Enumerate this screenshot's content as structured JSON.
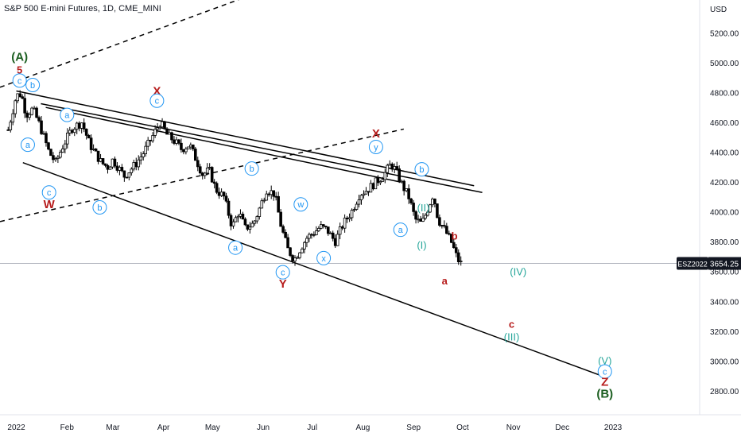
{
  "title": "S&P 500 E-mini Futures, 1D, CME_MINI",
  "chart_data": {
    "type": "candlestick",
    "currency": "USD",
    "y_ticks": [
      "5200.00",
      "5000.00",
      "4800.00",
      "4600.00",
      "4400.00",
      "4200.00",
      "4000.00",
      "3800.00",
      "3600.00",
      "3400.00",
      "3200.00",
      "3000.00",
      "2800.00"
    ],
    "y_tick_values": [
      5200,
      5000,
      4800,
      4600,
      4400,
      4200,
      4000,
      3800,
      3600,
      3400,
      3200,
      3000,
      2800
    ],
    "ylim": [
      2640,
      5420
    ],
    "x_ticks": [
      "2022",
      "Feb",
      "Mar",
      "Apr",
      "May",
      "Jun",
      "Jul",
      "Aug",
      "Sep",
      "Oct",
      "Nov",
      "Dec",
      "2023"
    ],
    "x_tick_days": [
      0,
      31,
      59,
      90,
      120,
      151,
      181,
      212,
      243,
      273,
      304,
      334,
      365
    ],
    "xlim_days": [
      -10,
      418
    ],
    "price_label": {
      "symbol": "ESZ2022",
      "value": "3654.25",
      "price": 3654.25
    },
    "price_path": [
      {
        "d": -5,
        "p": 4550
      },
      {
        "d": 0,
        "p": 4780
      },
      {
        "d": 3,
        "p": 4790
      },
      {
        "d": 6,
        "p": 4650
      },
      {
        "d": 10,
        "p": 4690
      },
      {
        "d": 14,
        "p": 4590
      },
      {
        "d": 20,
        "p": 4400
      },
      {
        "d": 24,
        "p": 4330
      },
      {
        "d": 28,
        "p": 4430
      },
      {
        "d": 34,
        "p": 4560
      },
      {
        "d": 40,
        "p": 4600
      },
      {
        "d": 45,
        "p": 4450
      },
      {
        "d": 52,
        "p": 4330
      },
      {
        "d": 56,
        "p": 4300
      },
      {
        "d": 59,
        "p": 4350
      },
      {
        "d": 66,
        "p": 4240
      },
      {
        "d": 73,
        "p": 4320
      },
      {
        "d": 78,
        "p": 4400
      },
      {
        "d": 83,
        "p": 4500
      },
      {
        "d": 88,
        "p": 4600
      },
      {
        "d": 92,
        "p": 4520
      },
      {
        "d": 97,
        "p": 4470
      },
      {
        "d": 101,
        "p": 4420
      },
      {
        "d": 106,
        "p": 4450
      },
      {
        "d": 110,
        "p": 4350
      },
      {
        "d": 114,
        "p": 4250
      },
      {
        "d": 118,
        "p": 4280
      },
      {
        "d": 122,
        "p": 4150
      },
      {
        "d": 127,
        "p": 4100
      },
      {
        "d": 132,
        "p": 3900
      },
      {
        "d": 136,
        "p": 4000
      },
      {
        "d": 140,
        "p": 3890
      },
      {
        "d": 145,
        "p": 3920
      },
      {
        "d": 148,
        "p": 4000
      },
      {
        "d": 153,
        "p": 4150
      },
      {
        "d": 158,
        "p": 4120
      },
      {
        "d": 162,
        "p": 3900
      },
      {
        "d": 166,
        "p": 3750
      },
      {
        "d": 170,
        "p": 3680
      },
      {
        "d": 174,
        "p": 3760
      },
      {
        "d": 178,
        "p": 3830
      },
      {
        "d": 182,
        "p": 3860
      },
      {
        "d": 186,
        "p": 3900
      },
      {
        "d": 190,
        "p": 3880
      },
      {
        "d": 195,
        "p": 3800
      },
      {
        "d": 200,
        "p": 3920
      },
      {
        "d": 205,
        "p": 4000
      },
      {
        "d": 210,
        "p": 4120
      },
      {
        "d": 215,
        "p": 4150
      },
      {
        "d": 220,
        "p": 4200
      },
      {
        "d": 225,
        "p": 4250
      },
      {
        "d": 229,
        "p": 4320
      },
      {
        "d": 232,
        "p": 4280
      },
      {
        "d": 236,
        "p": 4180
      },
      {
        "d": 240,
        "p": 4100
      },
      {
        "d": 244,
        "p": 3950
      },
      {
        "d": 248,
        "p": 3920
      },
      {
        "d": 251,
        "p": 4000
      },
      {
        "d": 255,
        "p": 4120
      },
      {
        "d": 258,
        "p": 3950
      },
      {
        "d": 262,
        "p": 3880
      },
      {
        "d": 266,
        "p": 3800
      },
      {
        "d": 270,
        "p": 3680
      },
      {
        "d": 272,
        "p": 3654.25
      }
    ],
    "trendlines": [
      {
        "style": "dashed",
        "from": {
          "d": -10,
          "p": 4835
        },
        "to": {
          "d": 200,
          "p": 5680
        }
      },
      {
        "style": "dashed",
        "from": {
          "d": -10,
          "p": 3935
        },
        "to": {
          "d": 237,
          "p": 4555
        }
      },
      {
        "style": "solid",
        "from": {
          "d": 0,
          "p": 4810
        },
        "to": {
          "d": 280,
          "p": 4175
        }
      },
      {
        "style": "solid",
        "from": {
          "d": 15,
          "p": 4725
        },
        "to": {
          "d": 285,
          "p": 4130
        }
      },
      {
        "style": "solid",
        "from": {
          "d": 18,
          "p": 4700
        },
        "to": {
          "d": 235,
          "p": 4200
        }
      },
      {
        "style": "solid",
        "from": {
          "d": 4,
          "p": 4330
        },
        "to": {
          "d": 362,
          "p": 2885
        }
      }
    ],
    "wave_labels": [
      {
        "text": "(A)",
        "d": 2,
        "p": 5040,
        "color": "green",
        "size": 15
      },
      {
        "text": "5",
        "d": 2,
        "p": 4955,
        "color": "red",
        "size": 13
      },
      {
        "text": "c",
        "d": 2,
        "p": 4880,
        "color": "blue",
        "circle": true
      },
      {
        "text": "b",
        "d": 10,
        "p": 4850,
        "color": "blue",
        "circle": true
      },
      {
        "text": "a",
        "d": 7,
        "p": 4450,
        "color": "blue",
        "circle": true
      },
      {
        "text": "a",
        "d": 31,
        "p": 4650,
        "color": "blue",
        "circle": true
      },
      {
        "text": "c",
        "d": 20,
        "p": 4130,
        "color": "blue",
        "circle": true
      },
      {
        "text": "W",
        "d": 20,
        "p": 4050,
        "color": "red",
        "size": 15
      },
      {
        "text": "b",
        "d": 51,
        "p": 4030,
        "color": "blue",
        "circle": true
      },
      {
        "text": "X",
        "d": 86,
        "p": 4810,
        "color": "red",
        "size": 15
      },
      {
        "text": "c",
        "d": 86,
        "p": 4745,
        "color": "blue",
        "circle": true
      },
      {
        "text": "b",
        "d": 144,
        "p": 4290,
        "color": "blue",
        "circle": true
      },
      {
        "text": "a",
        "d": 134,
        "p": 3760,
        "color": "blue",
        "circle": true
      },
      {
        "text": "c",
        "d": 163,
        "p": 3595,
        "color": "blue",
        "circle": true
      },
      {
        "text": "Y",
        "d": 163,
        "p": 3520,
        "color": "red",
        "size": 15
      },
      {
        "text": "w",
        "d": 174,
        "p": 4050,
        "color": "blue",
        "circle": true
      },
      {
        "text": "x",
        "d": 188,
        "p": 3690,
        "color": "blue",
        "circle": true
      },
      {
        "text": "X",
        "d": 220,
        "p": 4525,
        "color": "red",
        "size": 15
      },
      {
        "text": "y",
        "d": 220,
        "p": 4435,
        "color": "blue",
        "circle": true
      },
      {
        "text": "b",
        "d": 248,
        "p": 4285,
        "color": "blue",
        "circle": true
      },
      {
        "text": "(II)",
        "d": 249,
        "p": 4030,
        "color": "teal",
        "size": 13
      },
      {
        "text": "a",
        "d": 235,
        "p": 3880,
        "color": "blue",
        "circle": true
      },
      {
        "text": "(I)",
        "d": 248,
        "p": 3780,
        "color": "teal",
        "size": 13
      },
      {
        "text": "b",
        "d": 268,
        "p": 3840,
        "color": "red",
        "size": 13
      },
      {
        "text": "a",
        "d": 262,
        "p": 3540,
        "color": "red",
        "size": 13
      },
      {
        "text": "(IV)",
        "d": 307,
        "p": 3600,
        "color": "teal",
        "size": 13
      },
      {
        "text": "c",
        "d": 303,
        "p": 3250,
        "color": "red",
        "size": 13
      },
      {
        "text": "(III)",
        "d": 303,
        "p": 3165,
        "color": "teal",
        "size": 13
      },
      {
        "text": "(V)",
        "d": 360,
        "p": 3005,
        "color": "teal",
        "size": 13
      },
      {
        "text": "c",
        "d": 360,
        "p": 2930,
        "color": "blue",
        "circle": true
      },
      {
        "text": "Z",
        "d": 360,
        "p": 2860,
        "color": "red",
        "size": 15
      },
      {
        "text": "(B)",
        "d": 360,
        "p": 2780,
        "color": "green",
        "size": 15
      }
    ]
  }
}
